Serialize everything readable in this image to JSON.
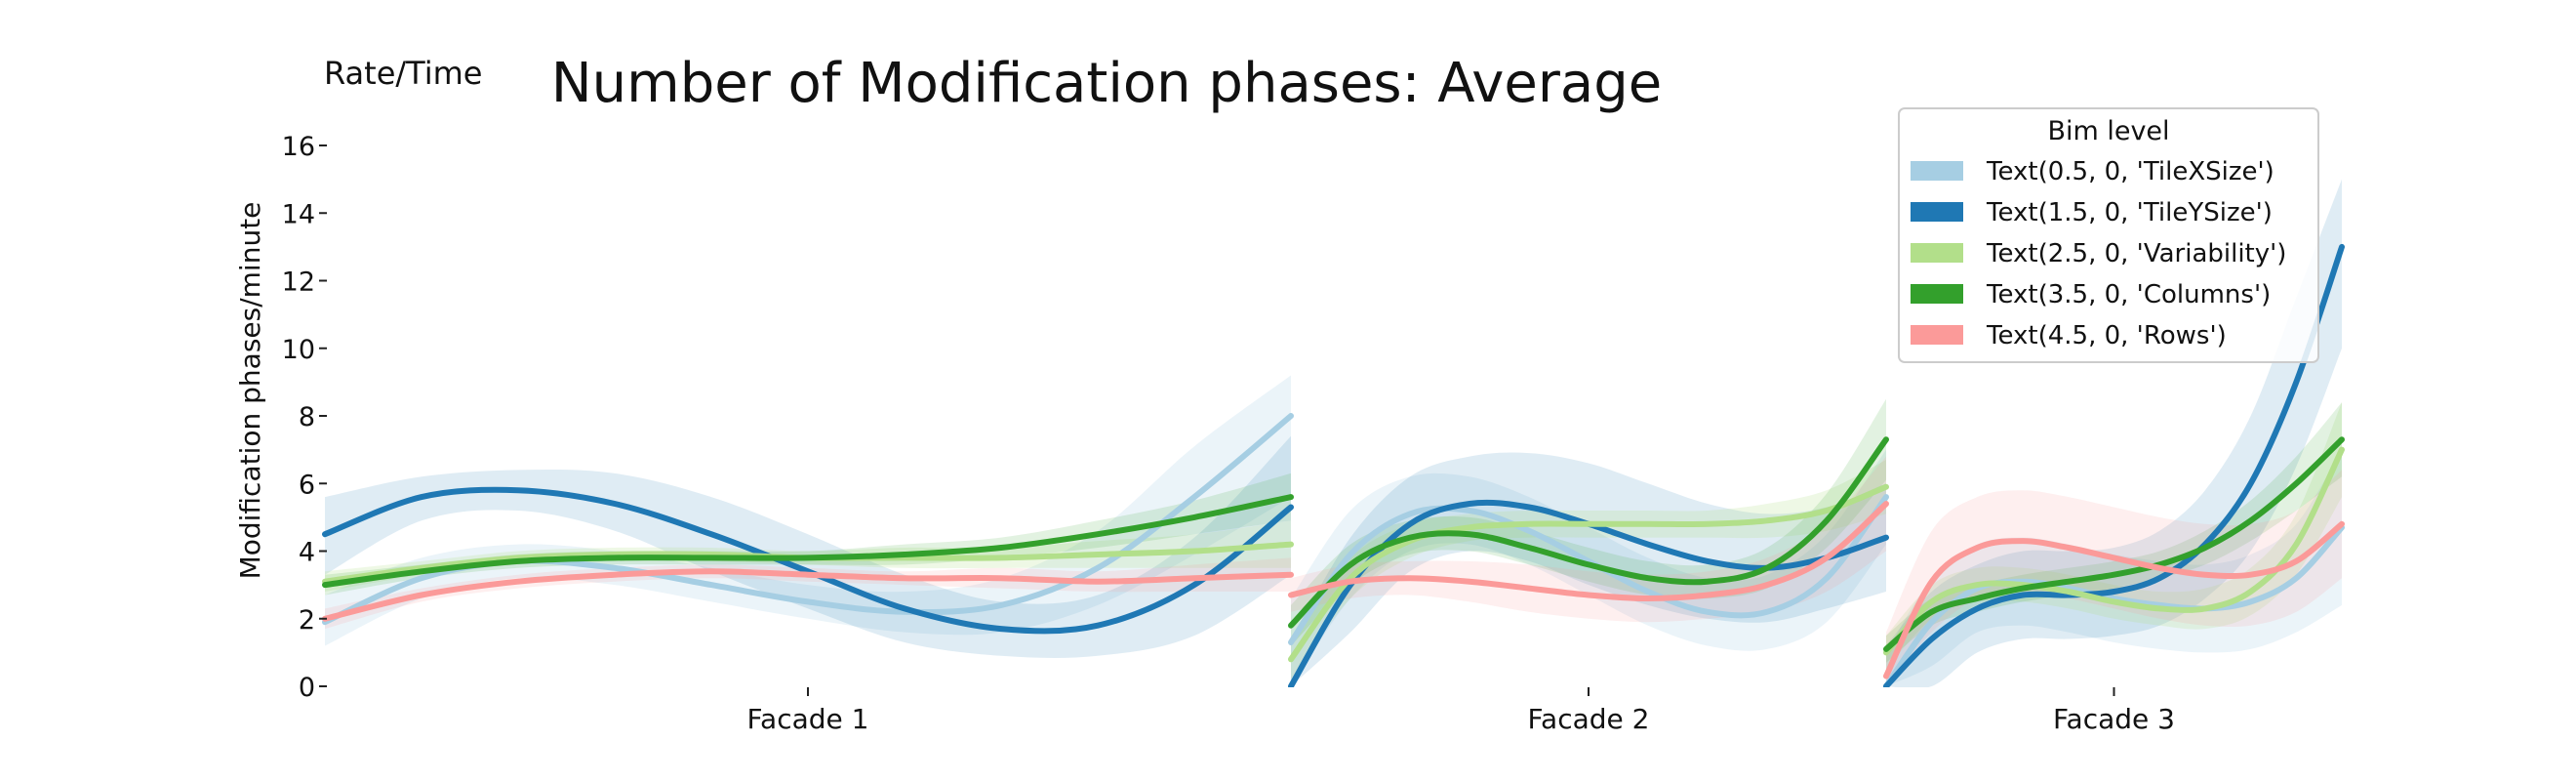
{
  "chart_data": {
    "type": "line",
    "title": "Number of Modification phases: Average",
    "corner_label": "Rate/Time",
    "ylabel": "Modification phases/minute",
    "xlabel": "",
    "ylim": [
      0,
      16
    ],
    "yticks": [
      0,
      2,
      4,
      6,
      8,
      10,
      12,
      14,
      16
    ],
    "ytick_labels": [
      "0",
      "2",
      "4",
      "6",
      "8",
      "10",
      "12",
      "14",
      "16"
    ],
    "legend": {
      "title": "Bim level",
      "placement": "top-right",
      "entries": [
        "Text(0.5, 0, 'TileXSize')",
        "Text(1.5, 0, 'TileYSize')",
        "Text(2.5, 0, 'Variability')",
        "Text(3.5, 0, 'Columns')",
        "Text(4.5, 0, 'Rows')"
      ]
    },
    "grid": false,
    "colors": [
      "#a6cee3",
      "#1f78b4",
      "#b2df8a",
      "#33a02c",
      "#fb9a99"
    ],
    "panels": [
      {
        "label": "Facade 1",
        "series": [
          {
            "values": [
              1.9,
              3.2,
              3.7,
              3.5,
              3.0,
              2.5,
              2.2,
              2.4,
              3.5,
              5.6,
              8.0
            ],
            "lower": [
              1.2,
              2.6,
              3.2,
              3.0,
              2.5,
              2.0,
              1.6,
              1.6,
              2.4,
              3.9,
              5.6
            ],
            "upper": [
              2.7,
              3.8,
              4.2,
              4.0,
              3.5,
              3.0,
              2.8,
              3.2,
              4.6,
              7.1,
              9.2
            ]
          },
          {
            "values": [
              4.5,
              5.6,
              5.8,
              5.4,
              4.5,
              3.4,
              2.3,
              1.7,
              1.8,
              3.0,
              5.3
            ],
            "lower": [
              3.3,
              4.9,
              5.2,
              4.6,
              3.4,
              2.3,
              1.3,
              0.9,
              0.9,
              1.5,
              3.3
            ],
            "upper": [
              5.6,
              6.2,
              6.4,
              6.3,
              5.6,
              4.5,
              3.3,
              2.5,
              2.7,
              4.4,
              7.4
            ]
          },
          {
            "values": [
              3.1,
              3.5,
              3.8,
              3.9,
              3.9,
              3.8,
              3.8,
              3.8,
              3.9,
              4.0,
              4.2
            ],
            "lower": [
              2.8,
              3.3,
              3.6,
              3.7,
              3.7,
              3.6,
              3.5,
              3.5,
              3.5,
              3.5,
              3.5
            ],
            "upper": [
              3.4,
              3.7,
              4.0,
              4.1,
              4.1,
              4.0,
              4.1,
              4.1,
              4.3,
              4.5,
              4.9
            ]
          },
          {
            "values": [
              3.0,
              3.4,
              3.7,
              3.8,
              3.8,
              3.8,
              3.9,
              4.1,
              4.5,
              5.0,
              5.6
            ],
            "lower": [
              2.7,
              3.2,
              3.5,
              3.6,
              3.6,
              3.6,
              3.6,
              3.8,
              4.1,
              4.5,
              4.9
            ],
            "upper": [
              3.3,
              3.6,
              3.9,
              4.0,
              4.0,
              4.0,
              4.2,
              4.4,
              4.9,
              5.5,
              6.3
            ]
          },
          {
            "values": [
              2.0,
              2.7,
              3.1,
              3.3,
              3.4,
              3.3,
              3.2,
              3.2,
              3.1,
              3.2,
              3.3
            ],
            "lower": [
              1.7,
              2.5,
              2.9,
              3.1,
              3.2,
              3.1,
              3.0,
              2.9,
              2.8,
              2.8,
              2.8
            ],
            "upper": [
              2.3,
              2.9,
              3.3,
              3.5,
              3.6,
              3.5,
              3.4,
              3.5,
              3.4,
              3.6,
              3.8
            ]
          }
        ]
      },
      {
        "label": "Facade 2",
        "series": [
          {
            "values": [
              1.3,
              3.9,
              5.1,
              5.2,
              4.6,
              3.7,
              2.8,
              2.2,
              2.2,
              3.2,
              5.6
            ],
            "lower": [
              0.0,
              2.6,
              4.0,
              4.2,
              3.6,
              2.7,
              1.8,
              1.2,
              1.1,
              1.9,
              4.2
            ],
            "upper": [
              2.6,
              5.2,
              6.2,
              6.2,
              5.6,
              4.7,
              3.8,
              3.2,
              3.3,
              4.5,
              7.0
            ]
          },
          {
            "values": [
              0.0,
              3.0,
              4.8,
              5.4,
              5.3,
              4.8,
              4.2,
              3.7,
              3.5,
              3.8,
              4.4
            ],
            "lower": [
              0.0,
              1.6,
              3.4,
              4.0,
              3.7,
              3.0,
              2.4,
              2.0,
              1.9,
              2.3,
              2.8
            ],
            "upper": [
              1.4,
              4.4,
              6.2,
              6.8,
              6.9,
              6.6,
              6.0,
              5.4,
              5.1,
              5.3,
              6.0
            ]
          },
          {
            "values": [
              0.8,
              3.2,
              4.3,
              4.7,
              4.8,
              4.8,
              4.8,
              4.8,
              4.9,
              5.2,
              5.9
            ],
            "lower": [
              0.2,
              2.6,
              3.8,
              4.3,
              4.4,
              4.4,
              4.4,
              4.4,
              4.4,
              4.6,
              5.1
            ],
            "upper": [
              1.4,
              3.8,
              4.8,
              5.1,
              5.2,
              5.2,
              5.2,
              5.2,
              5.4,
              5.8,
              6.7
            ]
          },
          {
            "values": [
              1.8,
              3.6,
              4.4,
              4.5,
              4.1,
              3.6,
              3.2,
              3.1,
              3.5,
              4.9,
              7.3
            ],
            "lower": [
              1.2,
              3.0,
              3.9,
              4.0,
              3.6,
              3.1,
              2.7,
              2.6,
              2.9,
              4.1,
              6.1
            ],
            "upper": [
              2.4,
              4.2,
              4.9,
              5.0,
              4.6,
              4.1,
              3.7,
              3.6,
              4.1,
              5.7,
              8.5
            ]
          },
          {
            "values": [
              2.7,
              3.1,
              3.2,
              3.1,
              2.9,
              2.7,
              2.6,
              2.7,
              3.0,
              3.8,
              5.4
            ],
            "lower": [
              2.2,
              2.6,
              2.7,
              2.5,
              2.2,
              2.0,
              1.9,
              2.0,
              2.2,
              2.8,
              4.0
            ],
            "upper": [
              3.2,
              3.6,
              3.7,
              3.7,
              3.6,
              3.4,
              3.3,
              3.4,
              3.8,
              4.8,
              6.8
            ]
          }
        ]
      },
      {
        "label": "Facade 3",
        "series": [
          {
            "values": [
              0.0,
              1.9,
              2.9,
              3.1,
              2.9,
              2.6,
              2.4,
              2.3,
              2.5,
              3.2,
              4.7
            ],
            "lower": [
              0.0,
              0.6,
              1.6,
              1.8,
              1.6,
              1.3,
              1.1,
              1.0,
              1.1,
              1.6,
              2.4
            ],
            "upper": [
              1.0,
              3.2,
              4.2,
              4.4,
              4.2,
              3.9,
              3.7,
              3.6,
              3.9,
              4.8,
              7.0
            ]
          },
          {
            "values": [
              0.0,
              1.4,
              2.3,
              2.7,
              2.7,
              2.8,
              3.2,
              4.2,
              6.0,
              9.0,
              13.0
            ],
            "lower": [
              0.0,
              0.0,
              1.0,
              1.4,
              1.4,
              1.5,
              1.8,
              2.6,
              4.0,
              6.5,
              10.0
            ],
            "upper": [
              1.2,
              2.8,
              3.6,
              4.0,
              4.0,
              4.1,
              4.6,
              5.8,
              8.0,
              11.5,
              15.0
            ]
          },
          {
            "values": [
              1.0,
              2.5,
              3.0,
              3.0,
              2.8,
              2.5,
              2.3,
              2.3,
              2.8,
              4.2,
              7.0
            ],
            "lower": [
              0.5,
              2.0,
              2.5,
              2.5,
              2.3,
              2.0,
              1.8,
              1.7,
              2.1,
              3.3,
              5.6
            ],
            "upper": [
              1.5,
              3.0,
              3.5,
              3.5,
              3.3,
              3.0,
              2.8,
              2.9,
              3.5,
              5.1,
              8.4
            ]
          },
          {
            "values": [
              1.1,
              2.2,
              2.6,
              2.9,
              3.1,
              3.3,
              3.6,
              4.1,
              4.9,
              6.0,
              7.3
            ],
            "lower": [
              0.7,
              1.8,
              2.2,
              2.5,
              2.7,
              2.9,
              3.2,
              3.6,
              4.3,
              5.2,
              6.2
            ],
            "upper": [
              1.5,
              2.6,
              3.0,
              3.3,
              3.5,
              3.7,
              4.0,
              4.6,
              5.5,
              6.8,
              8.4
            ]
          },
          {
            "values": [
              0.3,
              3.1,
              4.1,
              4.3,
              4.1,
              3.8,
              3.5,
              3.3,
              3.3,
              3.7,
              4.8
            ],
            "lower": [
              0.0,
              1.6,
              2.6,
              2.8,
              2.6,
              2.3,
              2.0,
              1.8,
              1.8,
              2.2,
              3.2
            ],
            "upper": [
              1.6,
              4.6,
              5.6,
              5.8,
              5.6,
              5.3,
              5.0,
              4.8,
              4.8,
              5.2,
              6.4
            ]
          }
        ]
      }
    ]
  }
}
